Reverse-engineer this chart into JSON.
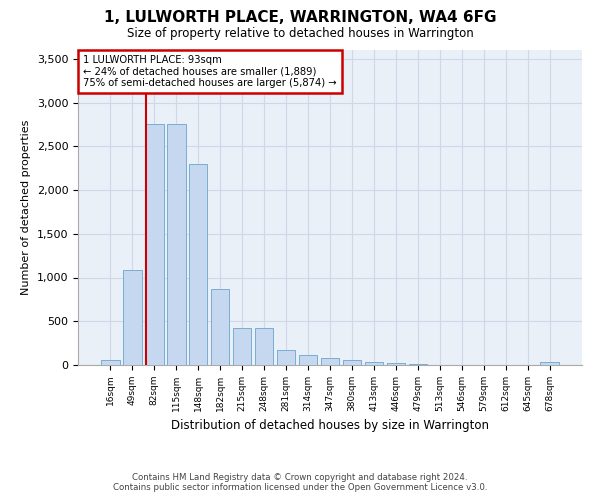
{
  "title": "1, LULWORTH PLACE, WARRINGTON, WA4 6FG",
  "subtitle": "Size of property relative to detached houses in Warrington",
  "xlabel": "Distribution of detached houses by size in Warrington",
  "ylabel": "Number of detached properties",
  "categories": [
    "16sqm",
    "49sqm",
    "82sqm",
    "115sqm",
    "148sqm",
    "182sqm",
    "215sqm",
    "248sqm",
    "281sqm",
    "314sqm",
    "347sqm",
    "380sqm",
    "413sqm",
    "446sqm",
    "479sqm",
    "513sqm",
    "546sqm",
    "579sqm",
    "612sqm",
    "645sqm",
    "678sqm"
  ],
  "values": [
    55,
    1090,
    2750,
    2750,
    2300,
    870,
    420,
    420,
    170,
    115,
    75,
    55,
    35,
    20,
    8,
    5,
    3,
    2,
    1,
    1,
    30
  ],
  "bar_color": "#c5d8ef",
  "bar_edge_color": "#7aadd4",
  "annotation_label": "1 LULWORTH PLACE: 93sqm",
  "annotation_line1": "← 24% of detached houses are smaller (1,889)",
  "annotation_line2": "75% of semi-detached houses are larger (5,874) →",
  "annotation_box_color": "#ffffff",
  "annotation_box_edge_color": "#cc0000",
  "vline_color": "#cc0000",
  "ylim": [
    0,
    3600
  ],
  "yticks": [
    0,
    500,
    1000,
    1500,
    2000,
    2500,
    3000,
    3500
  ],
  "background_color": "#eaf0f8",
  "grid_color": "#d0d8e8",
  "footer_line1": "Contains HM Land Registry data © Crown copyright and database right 2024.",
  "footer_line2": "Contains public sector information licensed under the Open Government Licence v3.0."
}
